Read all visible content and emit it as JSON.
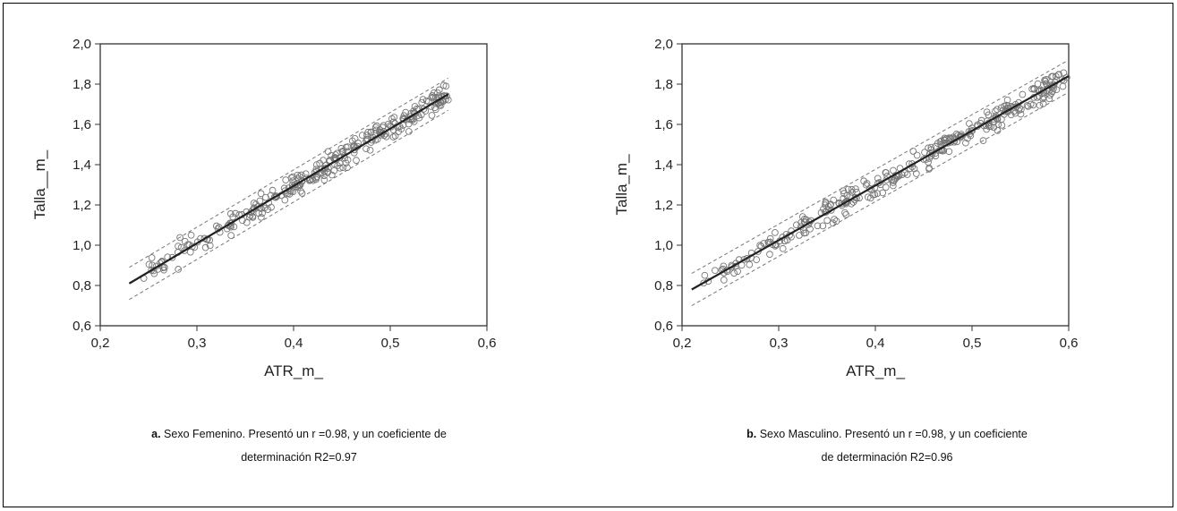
{
  "chart_data": [
    {
      "type": "scatter",
      "xlabel": "ATR_m_",
      "ylabel": "Talla__m_",
      "xlim": [
        0.2,
        0.6
      ],
      "ylim": [
        0.6,
        2.0
      ],
      "xticks": [
        "0,2",
        "0,3",
        "0,4",
        "0,5",
        "0,6"
      ],
      "yticks": [
        "0,6",
        "0,8",
        "1,0",
        "1,2",
        "1,4",
        "1,6",
        "1,8",
        "2,0"
      ],
      "regression_line": {
        "x": [
          0.23,
          0.56
        ],
        "y": [
          0.81,
          1.75
        ]
      },
      "prediction_band": {
        "upper": {
          "x": [
            0.23,
            0.56
          ],
          "y": [
            0.89,
            1.83
          ]
        },
        "lower": {
          "x": [
            0.23,
            0.56
          ],
          "y": [
            0.73,
            1.67
          ]
        }
      },
      "points_summary": {
        "x_range": [
          0.23,
          0.56
        ],
        "marker": "open-circle"
      },
      "seed": 11,
      "npoints": 300
    },
    {
      "type": "scatter",
      "xlabel": "ATR_m_",
      "ylabel": "Talla_m_",
      "xlim": [
        0.2,
        0.6
      ],
      "ylim": [
        0.6,
        2.0
      ],
      "xticks": [
        "0,2",
        "0,3",
        "0,4",
        "0,5",
        "0,6"
      ],
      "yticks": [
        "0,6",
        "0,8",
        "1,0",
        "1,2",
        "1,4",
        "1,6",
        "1,8",
        "2,0"
      ],
      "regression_line": {
        "x": [
          0.21,
          0.6
        ],
        "y": [
          0.78,
          1.84
        ]
      },
      "prediction_band": {
        "upper": {
          "x": [
            0.21,
            0.6
          ],
          "y": [
            0.86,
            1.92
          ]
        },
        "lower": {
          "x": [
            0.21,
            0.6
          ],
          "y": [
            0.7,
            1.76
          ]
        }
      },
      "points_summary": {
        "x_range": [
          0.21,
          0.6
        ],
        "marker": "open-circle"
      },
      "seed": 29,
      "npoints": 320
    }
  ],
  "captions": [
    {
      "prefix": "a.",
      "line1": " Sexo Femenino. Presentó un r =0.98, y un coeficiente de",
      "line2": "determinación R2=0.97"
    },
    {
      "prefix": "b.",
      "line1": " Sexo Masculino. Presentó un r =0.98, y un coeficiente",
      "line2": "de determinación R2=0.96"
    }
  ]
}
